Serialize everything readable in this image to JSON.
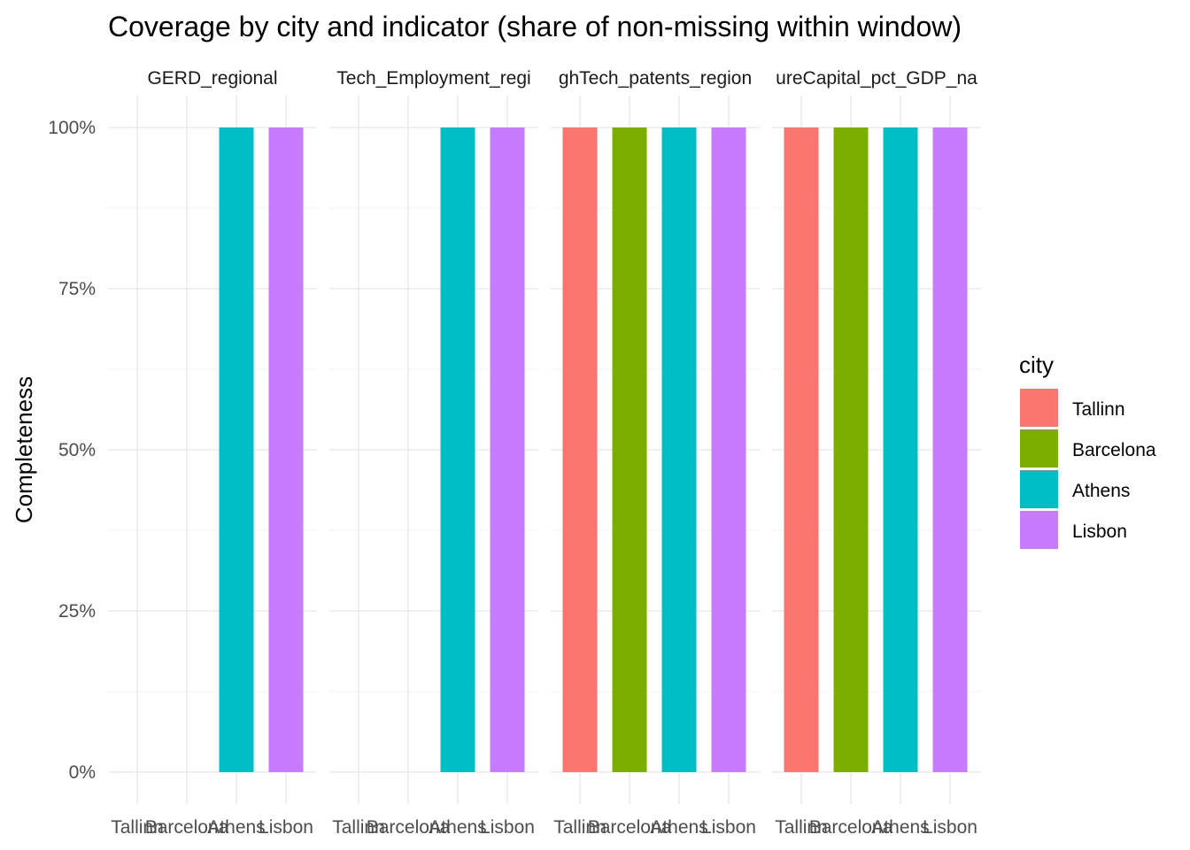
{
  "chart_data": {
    "type": "bar",
    "title": "Coverage by city and indicator (share of non-missing within window)",
    "ylabel": "Completeness",
    "xlabel": "",
    "ylim": [
      0,
      1
    ],
    "y_ticks": [
      {
        "value": 0,
        "label": "0%"
      },
      {
        "value": 0.25,
        "label": "25%"
      },
      {
        "value": 0.5,
        "label": "50%"
      },
      {
        "value": 0.75,
        "label": "75%"
      },
      {
        "value": 1,
        "label": "100%"
      }
    ],
    "categories": [
      "Tallinn",
      "Barcelona",
      "Athens",
      "Lisbon"
    ],
    "category_labels": [
      "Tallinn",
      "Barcelona",
      "Athens",
      "Lisbon"
    ],
    "colors": {
      "Tallinn": "#F8766D",
      "Barcelona": "#7CAE00",
      "Athens": "#00BFC4",
      "Lisbon": "#C77CFF"
    },
    "legend": {
      "title": "city",
      "position": "right",
      "entries": [
        "Tallinn",
        "Barcelona",
        "Athens",
        "Lisbon"
      ]
    },
    "grid": true,
    "facets": [
      {
        "label": "GERD_regional",
        "values": [
          0,
          0,
          1,
          1
        ]
      },
      {
        "label": "Tech_Employment_regi",
        "values": [
          0,
          0,
          1,
          1
        ]
      },
      {
        "label": "ghTech_patents_region",
        "values": [
          1,
          1,
          1,
          1
        ]
      },
      {
        "label": "ureCapital_pct_GDP_na",
        "values": [
          1,
          1,
          1,
          1
        ]
      }
    ]
  }
}
